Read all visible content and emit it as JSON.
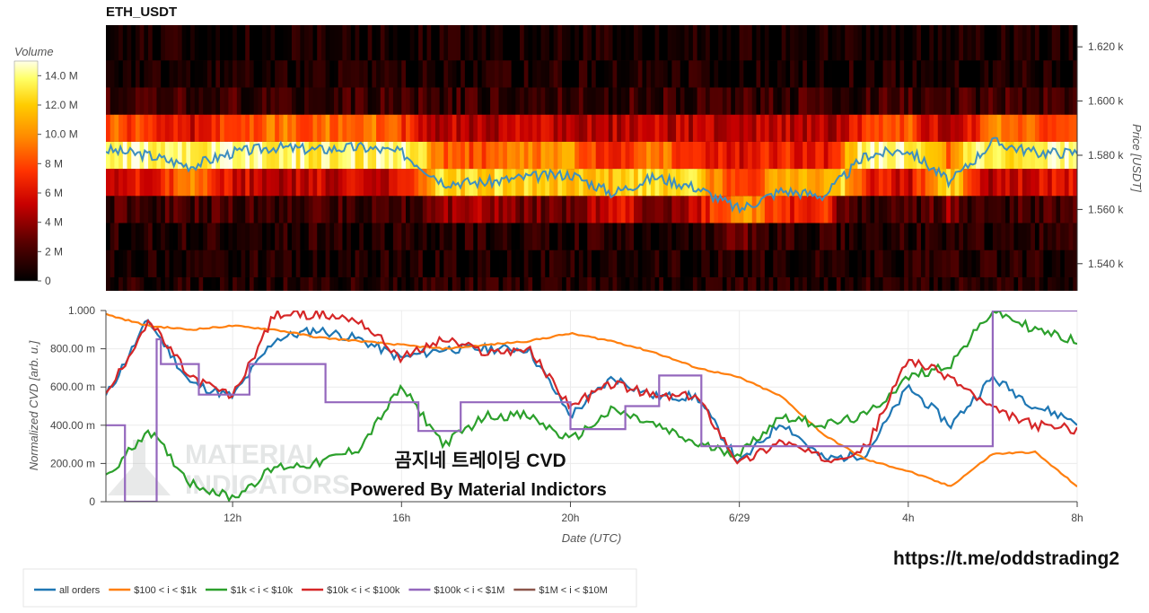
{
  "chart_data": [
    {
      "type": "heatmap",
      "title": "ETH_USDT",
      "ylabel": "Price [USDT]",
      "y_ticks": [
        "1.540 k",
        "1.560 k",
        "1.580 k",
        "1.600 k",
        "1.620 k"
      ],
      "y_tick_values": [
        1540,
        1560,
        1580,
        1600,
        1620
      ],
      "ylim": [
        1530,
        1628
      ],
      "x_range_hours": [
        9,
        32
      ],
      "colorbar": {
        "label": "Volume",
        "ticks": [
          "0",
          "2 M",
          "4 M",
          "6 M",
          "8 M",
          "10.0 M",
          "12.0 M",
          "14.0 M"
        ],
        "tick_values": [
          0,
          2,
          4,
          6,
          8,
          10,
          12,
          14
        ],
        "range": [
          0,
          15
        ]
      },
      "price_bands": [
        {
          "low": 1530,
          "high": 1535,
          "level": 0.12
        },
        {
          "low": 1535,
          "high": 1545,
          "level": 0.1
        },
        {
          "low": 1545,
          "high": 1555,
          "level": 0.12
        },
        {
          "low": 1555,
          "high": 1565,
          "level": 0.22
        },
        {
          "low": 1565,
          "high": 1575,
          "level": 0.5
        },
        {
          "low": 1575,
          "high": 1585,
          "level": 0.72
        },
        {
          "low": 1585,
          "high": 1595,
          "level": 0.6
        },
        {
          "low": 1595,
          "high": 1605,
          "level": 0.2
        },
        {
          "low": 1605,
          "high": 1615,
          "level": 0.08
        },
        {
          "low": 1615,
          "high": 1628,
          "level": 0.05
        }
      ],
      "price_line": {
        "x": [
          9,
          10,
          11,
          12,
          13,
          14,
          15,
          16,
          17,
          18,
          19,
          20,
          21,
          22,
          23,
          24,
          25,
          26,
          27,
          28,
          29,
          30,
          31,
          32
        ],
        "y": [
          1582,
          1580,
          1576,
          1581,
          1583,
          1582,
          1583,
          1581,
          1570,
          1570,
          1572,
          1573,
          1566,
          1572,
          1568,
          1560,
          1567,
          1565,
          1580,
          1582,
          1570,
          1585,
          1581,
          1581
        ]
      }
    },
    {
      "type": "line",
      "ylabel": "Normalized CVD [arb. u.]",
      "xlabel": "Date (UTC)",
      "ylim": [
        0,
        1
      ],
      "y_ticks": [
        "0",
        "200.00 m",
        "400.00 m",
        "600.00 m",
        "800.00 m",
        "1.000"
      ],
      "y_tick_values": [
        0,
        0.2,
        0.4,
        0.6,
        0.8,
        1.0
      ],
      "x_ticks": [
        "12h",
        "16h",
        "20h",
        "6/29",
        "4h",
        "8h"
      ],
      "x_tick_values": [
        12,
        16,
        20,
        24,
        28,
        32
      ],
      "x_range_hours": [
        9,
        32
      ],
      "grid": true,
      "legend_position": "bottom-left",
      "series": [
        {
          "name": "all orders",
          "x": [
            9,
            10,
            11,
            12,
            13,
            14,
            15,
            16,
            17,
            18,
            19,
            20,
            21,
            22,
            23,
            24,
            25,
            26,
            27,
            28,
            29,
            30,
            31,
            32
          ],
          "values": [
            0.55,
            0.95,
            0.62,
            0.55,
            0.85,
            0.9,
            0.85,
            0.75,
            0.8,
            0.8,
            0.8,
            0.45,
            0.65,
            0.55,
            0.55,
            0.2,
            0.42,
            0.22,
            0.25,
            0.6,
            0.4,
            0.65,
            0.5,
            0.42
          ]
        },
        {
          "name": "$100 < i < $1k",
          "x": [
            9,
            10,
            11,
            12,
            13,
            14,
            15,
            16,
            17,
            18,
            19,
            20,
            21,
            22,
            23,
            24,
            25,
            26,
            27,
            28,
            29,
            30,
            31,
            32
          ],
          "values": [
            0.98,
            0.92,
            0.9,
            0.92,
            0.9,
            0.86,
            0.84,
            0.82,
            0.8,
            0.82,
            0.84,
            0.88,
            0.84,
            0.78,
            0.7,
            0.65,
            0.55,
            0.35,
            0.22,
            0.16,
            0.08,
            0.25,
            0.26,
            0.08
          ]
        },
        {
          "name": "$1k < i < $10k",
          "x": [
            9,
            10,
            11,
            12,
            13,
            14,
            15,
            16,
            17,
            18,
            19,
            20,
            21,
            22,
            23,
            24,
            25,
            26,
            27,
            28,
            29,
            30,
            31,
            32
          ],
          "values": [
            0.12,
            0.38,
            0.1,
            0.02,
            0.18,
            0.2,
            0.28,
            0.6,
            0.3,
            0.45,
            0.45,
            0.32,
            0.48,
            0.4,
            0.3,
            0.25,
            0.45,
            0.4,
            0.45,
            0.65,
            0.72,
            1.0,
            0.9,
            0.84
          ]
        },
        {
          "name": "$10k < i < $100k",
          "x": [
            9,
            10,
            11,
            12,
            13,
            14,
            15,
            16,
            17,
            18,
            19,
            20,
            21,
            22,
            23,
            24,
            25,
            26,
            27,
            28,
            29,
            30,
            31,
            32
          ],
          "values": [
            0.55,
            0.95,
            0.65,
            0.55,
            0.98,
            0.98,
            0.95,
            0.75,
            0.85,
            0.78,
            0.8,
            0.5,
            0.62,
            0.55,
            0.55,
            0.2,
            0.32,
            0.22,
            0.28,
            0.75,
            0.65,
            0.48,
            0.4,
            0.38
          ]
        },
        {
          "name": "$100k < i < $1M",
          "x": [
            9,
            9.45,
            9.6,
            10.2,
            10.3,
            11.2,
            12.2,
            12.4,
            14.1,
            14.2,
            15,
            16,
            16.4,
            17.2,
            17.4,
            19.2,
            20,
            21.0,
            21.3,
            22,
            22.1,
            22.8,
            23.1,
            24,
            30,
            32
          ],
          "values": [
            0.4,
            0.0,
            0.0,
            0.85,
            0.72,
            0.56,
            0.56,
            0.72,
            0.72,
            0.52,
            0.52,
            0.52,
            0.37,
            0.37,
            0.52,
            0.52,
            0.38,
            0.38,
            0.5,
            0.5,
            0.66,
            0.66,
            0.29,
            0.29,
            1.0,
            1.0
          ]
        },
        {
          "name": "$1M < i < $10M",
          "x": [],
          "values": []
        }
      ],
      "colors": [
        "#1f77b4",
        "#ff7f0e",
        "#2ca02c",
        "#d62728",
        "#9467bd",
        "#8c564b"
      ]
    }
  ],
  "overlay": {
    "title_line": "곰지네 트레이딩 CVD",
    "powered_line": "Powered By Material Indictors",
    "link": "https://t.me/oddstrading2",
    "watermark_top": "MATERIAL",
    "watermark_bottom": "INDICATORS"
  }
}
